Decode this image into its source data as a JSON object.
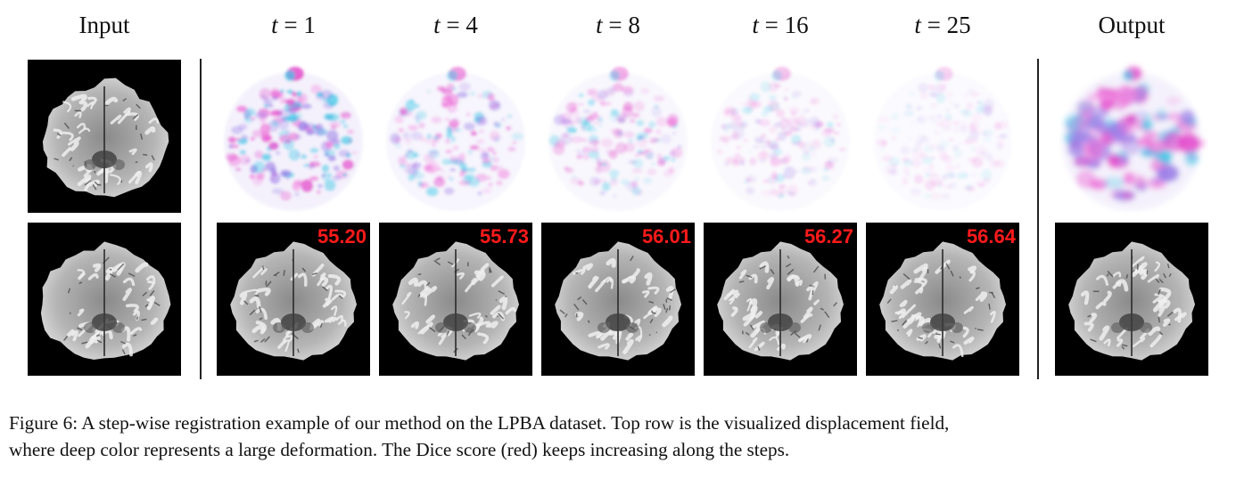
{
  "headers": {
    "input": "Input",
    "steps": [
      {
        "var": "t",
        "eq": "=",
        "num": "1"
      },
      {
        "var": "t",
        "eq": "=",
        "num": "4"
      },
      {
        "var": "t",
        "eq": "=",
        "num": "8"
      },
      {
        "var": "t",
        "eq": "=",
        "num": "16"
      },
      {
        "var": "t",
        "eq": "=",
        "num": "25"
      }
    ],
    "output": "Output"
  },
  "dice_scores": [
    "55.20",
    "55.73",
    "56.01",
    "56.27",
    "56.64"
  ],
  "colors": {
    "dice": "#ff1a1a",
    "separator": "#222222",
    "field_magenta": "#e23fc8",
    "field_cyan": "#3fc8e6"
  },
  "displacement_intensity": [
    1.0,
    0.62,
    0.45,
    0.3,
    0.18
  ],
  "caption": {
    "line1": "Figure 6: A step-wise registration example of our method on the LPBA dataset. Top row is the visualized displacement field,",
    "line2": "where deep color represents a large deformation. The Dice score (red) keeps increasing along the steps."
  }
}
